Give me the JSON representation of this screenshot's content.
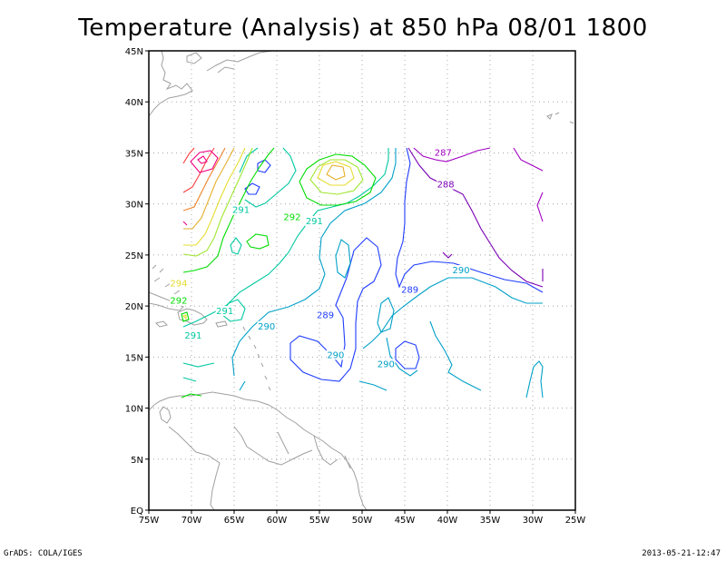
{
  "title": "Temperature (Analysis) at 850 hPa 08/01 1800",
  "map": {
    "lon_range": [
      -75,
      -25
    ],
    "lat_range": [
      0,
      45
    ],
    "x_ticks": [
      {
        "lon": -75,
        "label": "75W"
      },
      {
        "lon": -70,
        "label": "70W"
      },
      {
        "lon": -65,
        "label": "65W"
      },
      {
        "lon": -60,
        "label": "60W"
      },
      {
        "lon": -55,
        "label": "55W"
      },
      {
        "lon": -50,
        "label": "50W"
      },
      {
        "lon": -45,
        "label": "45W"
      },
      {
        "lon": -40,
        "label": "40W"
      },
      {
        "lon": -35,
        "label": "35W"
      },
      {
        "lon": -30,
        "label": "30W"
      },
      {
        "lon": -25,
        "label": "25W"
      }
    ],
    "y_ticks": [
      {
        "lat": 0,
        "label": "EQ"
      },
      {
        "lat": 5,
        "label": "5N"
      },
      {
        "lat": 10,
        "label": "10N"
      },
      {
        "lat": 15,
        "label": "15N"
      },
      {
        "lat": 20,
        "label": "20N"
      },
      {
        "lat": 25,
        "label": "25N"
      },
      {
        "lat": 30,
        "label": "30N"
      },
      {
        "lat": 35,
        "label": "35N"
      },
      {
        "lat": 40,
        "label": "40N"
      },
      {
        "lat": 45,
        "label": "45N"
      }
    ],
    "grid": "dotted",
    "colors": {
      "coast": "#a0a0a0",
      "c287": "#a000c0",
      "c288": "#7800b4",
      "c289": "#1e3cff",
      "c290": "#00a0c8",
      "c291": "#00c8a0",
      "c292": "#00dc00",
      "c293": "#a0e632",
      "c294": "#e6dc32",
      "c295": "#e6af2d",
      "c296": "#f08228",
      "c297": "#fa3c3c",
      "c298": "#f00082"
    },
    "contour_labels": [
      {
        "lon": -40.5,
        "lat": 34.8,
        "text": "287",
        "level": "c287"
      },
      {
        "lon": -40.2,
        "lat": 31.7,
        "text": "288",
        "level": "c288"
      },
      {
        "lon": -58.2,
        "lat": 28.5,
        "text": "292",
        "level": "c292"
      },
      {
        "lon": -55.6,
        "lat": 28.1,
        "text": "291",
        "level": "c291"
      },
      {
        "lon": -64.2,
        "lat": 29.2,
        "text": "291",
        "level": "c291"
      },
      {
        "lon": -71.5,
        "lat": 22.0,
        "text": "294",
        "level": "c294"
      },
      {
        "lon": -71.5,
        "lat": 20.3,
        "text": "292",
        "level": "c292"
      },
      {
        "lon": -66.1,
        "lat": 19.3,
        "text": "291",
        "level": "c291"
      },
      {
        "lon": -69.8,
        "lat": 16.9,
        "text": "291",
        "level": "c291"
      },
      {
        "lon": -61.2,
        "lat": 17.8,
        "text": "290",
        "level": "c290"
      },
      {
        "lon": -53.1,
        "lat": 15.0,
        "text": "290",
        "level": "c290"
      },
      {
        "lon": -54.3,
        "lat": 18.9,
        "text": "289",
        "level": "c289"
      },
      {
        "lon": -44.4,
        "lat": 21.4,
        "text": "289",
        "level": "c289"
      },
      {
        "lon": -47.2,
        "lat": 14.1,
        "text": "290",
        "level": "c290"
      },
      {
        "lon": -38.4,
        "lat": 23.3,
        "text": "290",
        "level": "c290"
      }
    ]
  },
  "footer": {
    "left": "GrADS: COLA/IGES",
    "right": "2013-05-21-12:47"
  }
}
